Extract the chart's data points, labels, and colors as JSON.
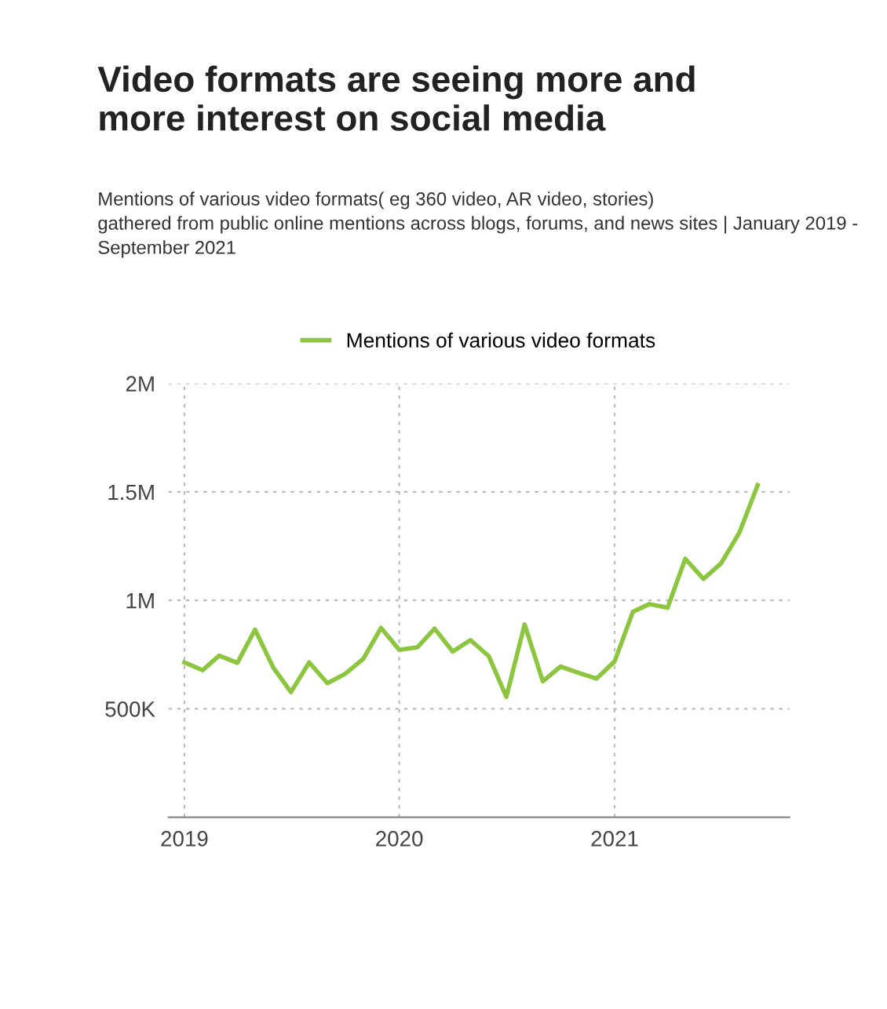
{
  "chart_data": {
    "type": "line",
    "title": "Video formats are seeing more and\nmore interest on social media",
    "subtitle": "Mentions of various video formats( eg 360 video, AR video, stories)\ngathered from public online mentions across blogs, forums, and news sites | January 2019 - September 2021",
    "x": [
      "2019-01",
      "2019-02",
      "2019-03",
      "2019-04",
      "2019-05",
      "2019-06",
      "2019-07",
      "2019-08",
      "2019-09",
      "2019-10",
      "2019-11",
      "2019-12",
      "2020-01",
      "2020-02",
      "2020-03",
      "2020-04",
      "2020-05",
      "2020-06",
      "2020-07",
      "2020-08",
      "2020-09",
      "2020-10",
      "2020-11",
      "2020-12",
      "2021-01",
      "2021-02",
      "2021-03",
      "2021-04",
      "2021-05",
      "2021-06",
      "2021-07",
      "2021-08",
      "2021-09"
    ],
    "series": [
      {
        "name": "Mentions of various video formats",
        "color": "#8cc63f",
        "values": [
          714000,
          678000,
          745000,
          712000,
          865000,
          690000,
          577000,
          714000,
          618000,
          661000,
          731000,
          873000,
          772000,
          784000,
          870000,
          764000,
          817000,
          743000,
          555000,
          889000,
          627000,
          695000,
          666000,
          639000,
          719000,
          947000,
          983000,
          966000,
          1192000,
          1099000,
          1171000,
          1313000,
          1531000
        ]
      }
    ],
    "xlim": [
      "2018-12-05",
      "2021-10-25"
    ],
    "xticks": [
      {
        "value": "2019-01-01",
        "label": "2019"
      },
      {
        "value": "2020-01-01",
        "label": "2020"
      },
      {
        "value": "2021-01-01",
        "label": "2021"
      }
    ],
    "ylim": [
      0,
      2000000
    ],
    "yticks": [
      {
        "value": 500000,
        "label": "500K"
      },
      {
        "value": 1000000,
        "label": "1M"
      },
      {
        "value": 1500000,
        "label": "1.5M"
      },
      {
        "value": 2000000,
        "label": "2M"
      }
    ],
    "grid": true,
    "legend": "top",
    "marker": "none",
    "line_style": "solid"
  }
}
